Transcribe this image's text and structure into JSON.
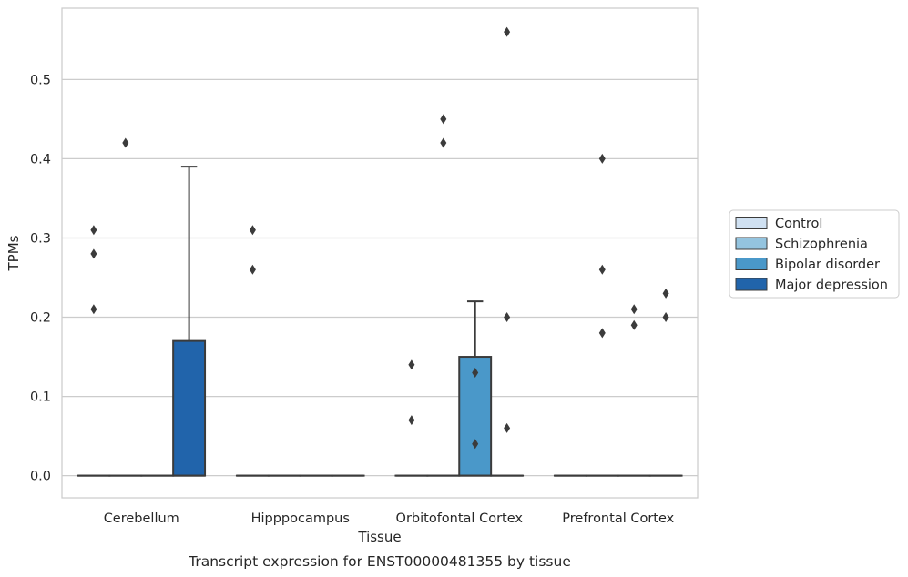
{
  "chart_data": {
    "type": "box",
    "title": "",
    "caption": "Transcript expression for ENST00000481355 by tissue",
    "xlabel": "Tissue",
    "ylabel": "TPMs",
    "ylim": [
      -0.028,
      0.59
    ],
    "yticks": [
      0.0,
      0.1,
      0.2,
      0.3,
      0.4,
      0.5
    ],
    "ytick_labels": [
      "0.0",
      "0.1",
      "0.2",
      "0.3",
      "0.4",
      "0.5"
    ],
    "grid": "horizontal",
    "legend_position": "right",
    "categories": [
      "Cerebellum",
      "Hipppocampus",
      "Orbitofontal Cortex",
      "Prefrontal Cortex"
    ],
    "series": [
      {
        "name": "Control",
        "color": "#d0e1f2",
        "boxes": [
          {
            "q1": 0,
            "median": 0,
            "q3": 0,
            "whisker_low": 0,
            "whisker_high": 0,
            "outliers": [
              0.31,
              0.28,
              0.21
            ]
          },
          {
            "q1": 0,
            "median": 0,
            "q3": 0,
            "whisker_low": 0,
            "whisker_high": 0,
            "outliers": [
              0.31,
              0.26
            ]
          },
          {
            "q1": 0,
            "median": 0,
            "q3": 0,
            "whisker_low": 0,
            "whisker_high": 0,
            "outliers": [
              0.14,
              0.07
            ]
          },
          {
            "q1": 0,
            "median": 0,
            "q3": 0,
            "whisker_low": 0,
            "whisker_high": 0,
            "outliers": []
          }
        ]
      },
      {
        "name": "Schizophrenia",
        "color": "#94c4df",
        "boxes": [
          {
            "q1": 0,
            "median": 0,
            "q3": 0,
            "whisker_low": 0,
            "whisker_high": 0,
            "outliers": [
              0.42
            ]
          },
          {
            "q1": 0,
            "median": 0,
            "q3": 0,
            "whisker_low": 0,
            "whisker_high": 0,
            "outliers": []
          },
          {
            "q1": 0,
            "median": 0,
            "q3": 0,
            "whisker_low": 0,
            "whisker_high": 0,
            "outliers": [
              0.45,
              0.42
            ]
          },
          {
            "q1": 0,
            "median": 0,
            "q3": 0,
            "whisker_low": 0,
            "whisker_high": 0,
            "outliers": [
              0.4,
              0.26,
              0.18
            ]
          }
        ]
      },
      {
        "name": "Bipolar disorder",
        "color": "#4a98c9",
        "boxes": [
          {
            "q1": 0,
            "median": 0,
            "q3": 0,
            "whisker_low": 0,
            "whisker_high": 0,
            "outliers": []
          },
          {
            "q1": 0,
            "median": 0,
            "q3": 0,
            "whisker_low": 0,
            "whisker_high": 0,
            "outliers": []
          },
          {
            "q1": 0,
            "median": 0,
            "q3": 0.15,
            "whisker_low": 0,
            "whisker_high": 0.22,
            "outliers": [
              0.13,
              0.04
            ]
          },
          {
            "q1": 0,
            "median": 0,
            "q3": 0,
            "whisker_low": 0,
            "whisker_high": 0,
            "outliers": [
              0.19,
              0.21
            ]
          }
        ]
      },
      {
        "name": "Major depression",
        "color": "#2164ab",
        "boxes": [
          {
            "q1": 0,
            "median": 0,
            "q3": 0.17,
            "whisker_low": 0,
            "whisker_high": 0.39,
            "outliers": []
          },
          {
            "q1": 0,
            "median": 0,
            "q3": 0,
            "whisker_low": 0,
            "whisker_high": 0,
            "outliers": []
          },
          {
            "q1": 0,
            "median": 0,
            "q3": 0,
            "whisker_low": 0,
            "whisker_high": 0,
            "outliers": [
              0.56,
              0.2,
              0.06
            ]
          },
          {
            "q1": 0,
            "median": 0,
            "q3": 0,
            "whisker_low": 0,
            "whisker_high": 0,
            "outliers": [
              0.23,
              0.2
            ]
          }
        ]
      }
    ]
  }
}
